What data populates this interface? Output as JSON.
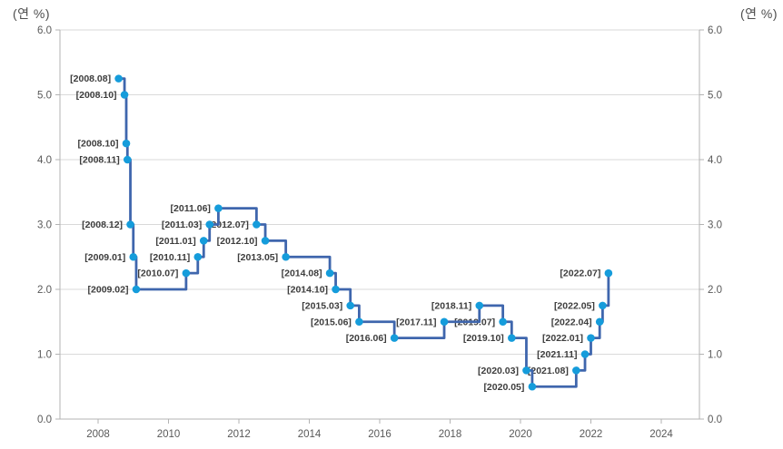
{
  "chart_data": {
    "type": "line",
    "subtype": "step",
    "title": "",
    "legend": "none",
    "grid": "horizontal",
    "axis_title_left": "(연 %)",
    "axis_title_right": "(연 %)",
    "xlim": [
      2006.916,
      2025.084
    ],
    "ylim": [
      0.0,
      6.0
    ],
    "colors": {
      "line": "#3f66ad",
      "marker": "#159cdb",
      "grid": "#d9d9d9",
      "axis": "#b3b3b3",
      "tick_text": "#595959",
      "point_label_text": "#3d3d3d",
      "background": "#ffffff"
    },
    "yticks": [
      {
        "value": 0,
        "label": "0.0"
      },
      {
        "value": 1,
        "label": "1.0"
      },
      {
        "value": 2,
        "label": "2.0"
      },
      {
        "value": 3,
        "label": "3.0"
      },
      {
        "value": 4,
        "label": "4.0"
      },
      {
        "value": 5,
        "label": "5.0"
      },
      {
        "value": 6,
        "label": "6.0"
      }
    ],
    "xticks": [
      {
        "value": 2008,
        "label": "2008"
      },
      {
        "value": 2010,
        "label": "2010"
      },
      {
        "value": 2012,
        "label": "2012"
      },
      {
        "value": 2014,
        "label": "2014"
      },
      {
        "value": 2016,
        "label": "2016"
      },
      {
        "value": 2018,
        "label": "2018"
      },
      {
        "value": 2020,
        "label": "2020"
      },
      {
        "value": 2022,
        "label": "2022"
      },
      {
        "value": 2024,
        "label": "2024"
      }
    ],
    "points": [
      {
        "label": "[2008.08]",
        "x": 2008.583,
        "y": 5.25
      },
      {
        "label": "[2008.10]",
        "x": 2008.75,
        "y": 5.0
      },
      {
        "label": "[2008.10]",
        "x": 2008.8,
        "y": 4.25
      },
      {
        "label": "[2008.11]",
        "x": 2008.833,
        "y": 4.0
      },
      {
        "label": "[2008.12]",
        "x": 2008.917,
        "y": 3.0
      },
      {
        "label": "[2009.01]",
        "x": 2009.0,
        "y": 2.5
      },
      {
        "label": "[2009.02]",
        "x": 2009.083,
        "y": 2.0
      },
      {
        "label": "[2010.07]",
        "x": 2010.5,
        "y": 2.25
      },
      {
        "label": "[2010.11]",
        "x": 2010.833,
        "y": 2.5
      },
      {
        "label": "[2011.01]",
        "x": 2011.0,
        "y": 2.75
      },
      {
        "label": "[2011.03]",
        "x": 2011.167,
        "y": 3.0
      },
      {
        "label": "[2011.06]",
        "x": 2011.417,
        "y": 3.25
      },
      {
        "label": "[2012.07]",
        "x": 2012.5,
        "y": 3.0
      },
      {
        "label": "[2012.10]",
        "x": 2012.75,
        "y": 2.75
      },
      {
        "label": "[2013.05]",
        "x": 2013.333,
        "y": 2.5
      },
      {
        "label": "[2014.08]",
        "x": 2014.583,
        "y": 2.25
      },
      {
        "label": "[2014.10]",
        "x": 2014.75,
        "y": 2.0
      },
      {
        "label": "[2015.03]",
        "x": 2015.167,
        "y": 1.75
      },
      {
        "label": "[2015.06]",
        "x": 2015.417,
        "y": 1.5
      },
      {
        "label": "[2016.06]",
        "x": 2016.417,
        "y": 1.25
      },
      {
        "label": "[2017.11]",
        "x": 2017.833,
        "y": 1.5
      },
      {
        "label": "[2018.11]",
        "x": 2018.833,
        "y": 1.75
      },
      {
        "label": "[2019.07]",
        "x": 2019.5,
        "y": 1.5
      },
      {
        "label": "[2019.10]",
        "x": 2019.75,
        "y": 1.25
      },
      {
        "label": "[2020.03]",
        "x": 2020.167,
        "y": 0.75
      },
      {
        "label": "[2020.05]",
        "x": 2020.333,
        "y": 0.5
      },
      {
        "label": "[2021.08]",
        "x": 2021.583,
        "y": 0.75
      },
      {
        "label": "[2021.11]",
        "x": 2021.833,
        "y": 1.0
      },
      {
        "label": "[2022.01]",
        "x": 2022.0,
        "y": 1.25
      },
      {
        "label": "[2022.04]",
        "x": 2022.25,
        "y": 1.5
      },
      {
        "label": "[2022.05]",
        "x": 2022.333,
        "y": 1.75
      },
      {
        "label": "[2022.07]",
        "x": 2022.5,
        "y": 2.25
      }
    ]
  }
}
